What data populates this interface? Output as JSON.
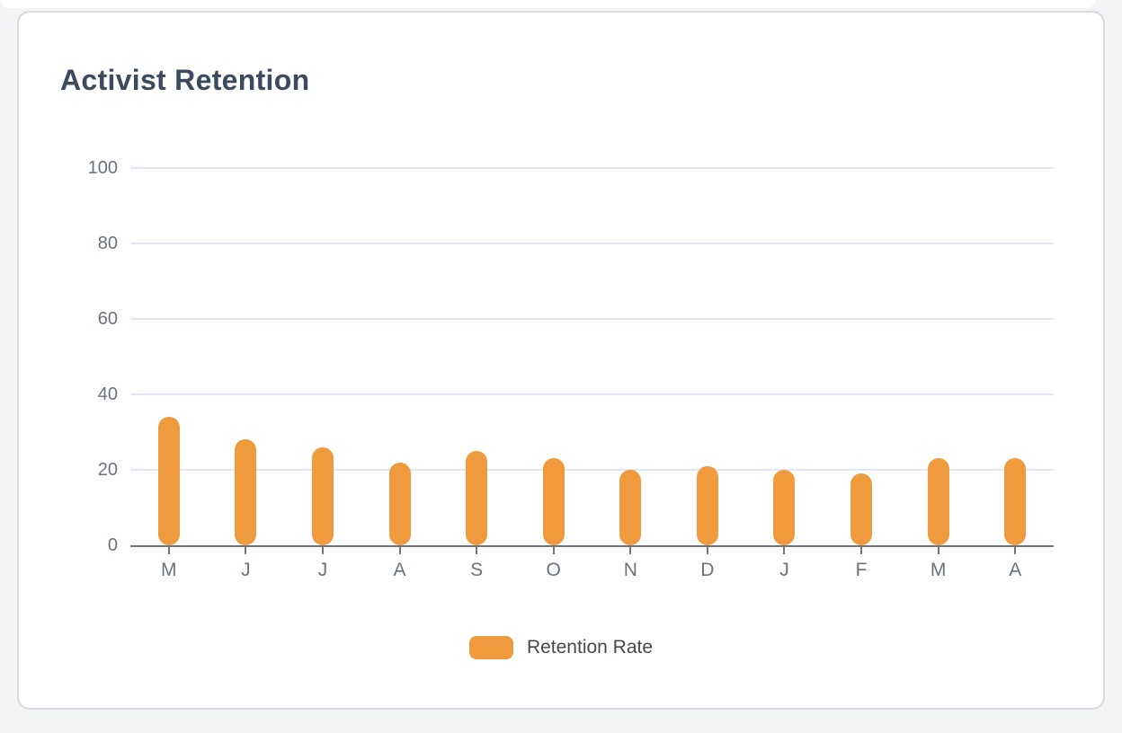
{
  "chart_title": "Activist Retention",
  "legend": {
    "items": [
      {
        "label": "Retention Rate",
        "color": "#F09A3E"
      }
    ]
  },
  "chart_data": {
    "type": "bar",
    "title": "Activist Retention",
    "categories": [
      "M",
      "J",
      "J",
      "A",
      "S",
      "O",
      "N",
      "D",
      "J",
      "F",
      "M",
      "A"
    ],
    "series": [
      {
        "name": "Retention Rate",
        "values": [
          34,
          28,
          26,
          22,
          25,
          23,
          20,
          21,
          20,
          19,
          23,
          23
        ],
        "color": "#F09A3E"
      }
    ],
    "xlabel": "",
    "ylabel": "",
    "ylim": [
      0,
      100
    ],
    "yticks": [
      0,
      20,
      40,
      60,
      80,
      100
    ],
    "grid": true,
    "legend_position": "bottom",
    "gridline_color": "#e3e6f1",
    "axis_color": "#6e747e",
    "tick_label_color": "#6c727c"
  }
}
